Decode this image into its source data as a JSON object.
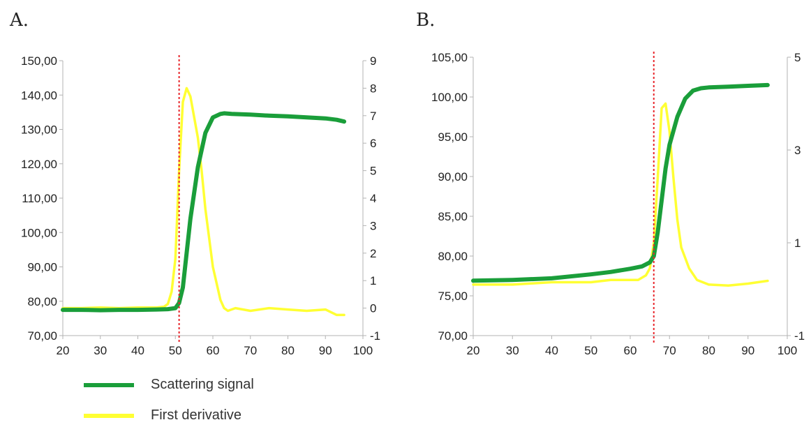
{
  "panels": [
    {
      "label": "A."
    },
    {
      "label": "B."
    }
  ],
  "legend": [
    {
      "label": "Scattering signal",
      "color": "#1a9e3a"
    },
    {
      "label": "First derivative",
      "color": "#ffff33"
    }
  ],
  "chart_data": [
    {
      "type": "line",
      "panel": "A.",
      "xlim": [
        20,
        100
      ],
      "xticks": [
        "20",
        "30",
        "40",
        "50",
        "60",
        "70",
        "80",
        "90",
        "100"
      ],
      "ylim_left": [
        70,
        150
      ],
      "yticks_left": [
        "70,00",
        "80,00",
        "90,00",
        "100,00",
        "110,00",
        "120,00",
        "130,00",
        "140,00",
        "150,00"
      ],
      "ylim_right": [
        -1,
        9
      ],
      "yticks_right": [
        "-1",
        "0",
        "1",
        "2",
        "3",
        "4",
        "5",
        "6",
        "7",
        "8",
        "9"
      ],
      "marker_x": 51,
      "grid": false,
      "series": [
        {
          "name": "Scattering signal",
          "axis": "left",
          "color": "#1a9e3a",
          "x": [
            20,
            25,
            30,
            35,
            40,
            45,
            48,
            50,
            51,
            52,
            53,
            54,
            56,
            58,
            60,
            62,
            63,
            65,
            70,
            75,
            80,
            85,
            90,
            93,
            95
          ],
          "y": [
            77.5,
            77.5,
            77.4,
            77.5,
            77.5,
            77.6,
            77.7,
            78.0,
            79.5,
            84,
            94,
            104,
            119,
            129,
            133.5,
            134.5,
            134.7,
            134.5,
            134.3,
            134.0,
            133.8,
            133.5,
            133.2,
            132.8,
            132.3
          ]
        },
        {
          "name": "First derivative",
          "axis": "right",
          "color": "#ffff33",
          "x": [
            20,
            25,
            30,
            35,
            40,
            45,
            47,
            48,
            49,
            50,
            51,
            52,
            53,
            54,
            56,
            57,
            58,
            60,
            62,
            63,
            64,
            66,
            70,
            75,
            80,
            85,
            90,
            93,
            95
          ],
          "y": [
            0.0,
            0.0,
            0.02,
            0.0,
            0.02,
            0.02,
            0.05,
            0.15,
            0.6,
            1.8,
            5.0,
            7.5,
            8.0,
            7.7,
            6.2,
            5.0,
            3.6,
            1.5,
            0.3,
            0.0,
            -0.1,
            0.0,
            -0.1,
            0.0,
            -0.05,
            -0.1,
            -0.05,
            -0.25,
            -0.25
          ]
        }
      ]
    },
    {
      "type": "line",
      "panel": "B.",
      "xlim": [
        20,
        100
      ],
      "xticks": [
        "20",
        "30",
        "40",
        "50",
        "60",
        "70",
        "80",
        "90",
        "100"
      ],
      "ylim_left": [
        70,
        105
      ],
      "yticks_left": [
        "70,00",
        "75,00",
        "80,00",
        "85,00",
        "90,00",
        "95,00",
        "100,00",
        "105,00"
      ],
      "ylim_right": [
        -1,
        5
      ],
      "yticks_right": [
        "-1",
        "1",
        "3",
        "5"
      ],
      "marker_x": 66,
      "grid": false,
      "series": [
        {
          "name": "Scattering signal",
          "axis": "left",
          "color": "#1a9e3a",
          "x": [
            20,
            30,
            40,
            50,
            55,
            60,
            63,
            65,
            66,
            67,
            68,
            69,
            70,
            72,
            74,
            76,
            78,
            80,
            85,
            90,
            95
          ],
          "y": [
            76.9,
            77.0,
            77.2,
            77.7,
            78.0,
            78.4,
            78.7,
            79.2,
            80.0,
            83,
            87,
            91,
            94,
            97.5,
            99.8,
            100.8,
            101.1,
            101.2,
            101.3,
            101.4,
            101.5
          ]
        },
        {
          "name": "First derivative",
          "axis": "right",
          "color": "#ffff33",
          "x": [
            20,
            30,
            40,
            50,
            55,
            60,
            62,
            64,
            65,
            66,
            67,
            68,
            69,
            70,
            71,
            72,
            73,
            75,
            77,
            80,
            85,
            90,
            95
          ],
          "y": [
            0.1,
            0.1,
            0.15,
            0.15,
            0.2,
            0.2,
            0.2,
            0.3,
            0.45,
            1.0,
            2.4,
            3.9,
            4.0,
            3.4,
            2.4,
            1.5,
            0.9,
            0.45,
            0.2,
            0.1,
            0.08,
            0.12,
            0.18
          ]
        }
      ]
    }
  ]
}
